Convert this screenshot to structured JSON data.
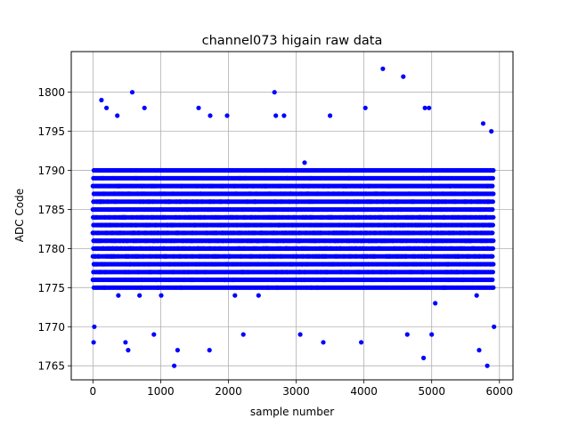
{
  "chart_data": {
    "type": "scatter",
    "title": "channel073 higain raw data",
    "xlabel": "sample number",
    "ylabel": "ADC Code",
    "xlim": [
      -320,
      6200
    ],
    "ylim": [
      1763.2,
      1805.2
    ],
    "xticks": [
      0,
      1000,
      2000,
      3000,
      4000,
      5000,
      6000
    ],
    "yticks": [
      1765,
      1770,
      1775,
      1780,
      1785,
      1790,
      1795,
      1800
    ],
    "grid": true,
    "legend": "none",
    "marker_color": "#0000ff",
    "n_samples": 5900,
    "typical_range": [
      1773,
      1791
    ],
    "outliers": [
      {
        "x": 125,
        "y": 1799
      },
      {
        "x": 200,
        "y": 1798
      },
      {
        "x": 580,
        "y": 1800
      },
      {
        "x": 360,
        "y": 1797
      },
      {
        "x": 520,
        "y": 1767
      },
      {
        "x": 480,
        "y": 1768
      },
      {
        "x": 10,
        "y": 1768
      },
      {
        "x": 20,
        "y": 1770
      },
      {
        "x": 760,
        "y": 1798
      },
      {
        "x": 900,
        "y": 1769
      },
      {
        "x": 1200,
        "y": 1765
      },
      {
        "x": 1250,
        "y": 1767
      },
      {
        "x": 1560,
        "y": 1798
      },
      {
        "x": 1720,
        "y": 1767
      },
      {
        "x": 1730,
        "y": 1797
      },
      {
        "x": 1980,
        "y": 1797
      },
      {
        "x": 2220,
        "y": 1769
      },
      {
        "x": 2680,
        "y": 1800
      },
      {
        "x": 2700,
        "y": 1797
      },
      {
        "x": 2820,
        "y": 1797
      },
      {
        "x": 3060,
        "y": 1769
      },
      {
        "x": 3400,
        "y": 1768
      },
      {
        "x": 3500,
        "y": 1797
      },
      {
        "x": 3960,
        "y": 1768
      },
      {
        "x": 4020,
        "y": 1798
      },
      {
        "x": 4280,
        "y": 1803
      },
      {
        "x": 4580,
        "y": 1802
      },
      {
        "x": 4640,
        "y": 1769
      },
      {
        "x": 4880,
        "y": 1766
      },
      {
        "x": 4900,
        "y": 1798
      },
      {
        "x": 4960,
        "y": 1798
      },
      {
        "x": 5000,
        "y": 1769
      },
      {
        "x": 5700,
        "y": 1767
      },
      {
        "x": 5820,
        "y": 1765
      },
      {
        "x": 5880,
        "y": 1795
      },
      {
        "x": 5920,
        "y": 1770
      },
      {
        "x": 5760,
        "y": 1796
      }
    ]
  }
}
